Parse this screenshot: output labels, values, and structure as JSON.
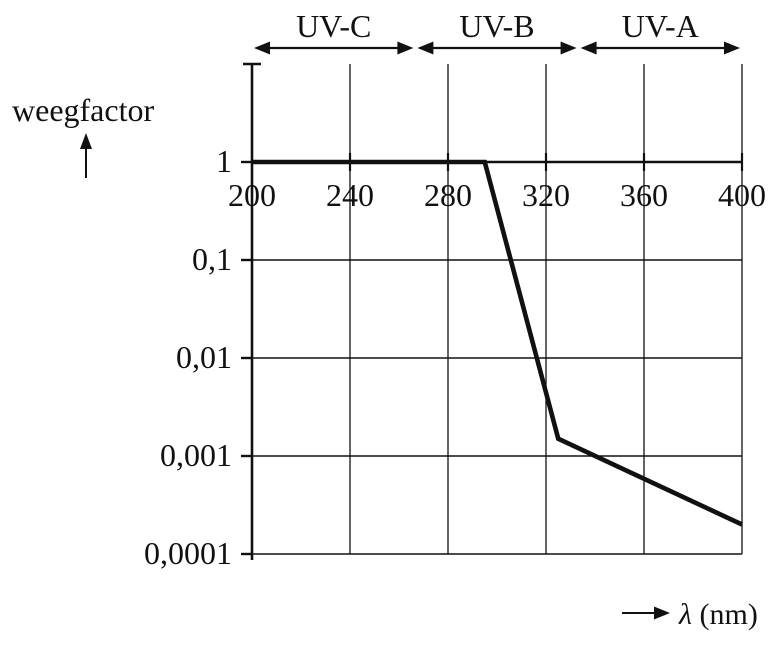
{
  "colors": {
    "ink": "#111111",
    "background": "#ffffff"
  },
  "chart_data": {
    "type": "line",
    "title": "",
    "ylabel": "weegfactor",
    "xlabel": "λ (nm)",
    "xlabel_parts": {
      "lambda": "λ",
      "unit": " (nm)"
    },
    "y_scale": "log",
    "xlim": [
      200,
      400
    ],
    "ylim": [
      0.0001,
      10
    ],
    "grid": true,
    "legend": false,
    "x_ticks": [
      {
        "value": 200,
        "label": "200"
      },
      {
        "value": 240,
        "label": "240"
      },
      {
        "value": 280,
        "label": "280"
      },
      {
        "value": 320,
        "label": "320"
      },
      {
        "value": 360,
        "label": "360"
      },
      {
        "value": 400,
        "label": "400"
      }
    ],
    "y_ticks": [
      {
        "value": 1,
        "label": "1"
      },
      {
        "value": 0.1,
        "label": "0,1"
      },
      {
        "value": 0.01,
        "label": "0,01"
      },
      {
        "value": 0.001,
        "label": "0,001"
      },
      {
        "value": 0.0001,
        "label": "0,0001"
      }
    ],
    "series": [
      {
        "name": "weegfactor",
        "points": [
          [
            200,
            1
          ],
          [
            295,
            1
          ],
          [
            325,
            0.0015
          ],
          [
            400,
            0.0002
          ]
        ]
      }
    ],
    "bands": [
      {
        "label": "UV-C",
        "from": 200,
        "to": 266.7
      },
      {
        "label": "UV-B",
        "from": 266.7,
        "to": 333.3
      },
      {
        "label": "UV-A",
        "from": 333.3,
        "to": 400
      }
    ]
  }
}
